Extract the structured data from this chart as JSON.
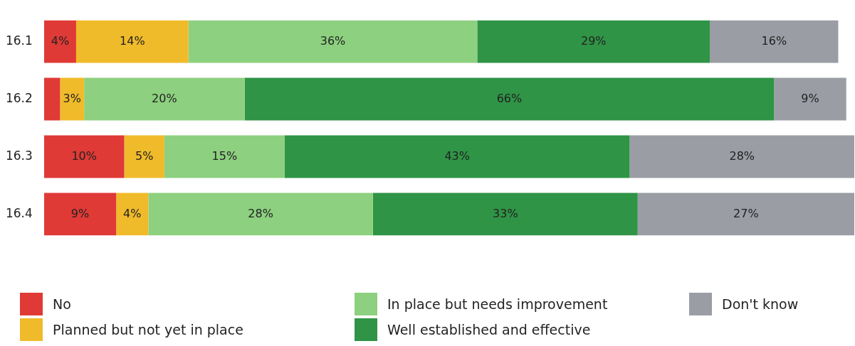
{
  "chart_data": {
    "type": "bar",
    "orientation": "horizontal",
    "stacked": true,
    "categories": [
      "16.1",
      "16.2",
      "16.3",
      "16.4"
    ],
    "xlim": [
      0,
      101
    ],
    "tick_labels": "y",
    "legend": "bottom",
    "series": [
      {
        "name": "No",
        "color": "#e03a36",
        "values": [
          4,
          2,
          10,
          9
        ],
        "value_labels": [
          "4%",
          null,
          "10%",
          "9%"
        ]
      },
      {
        "name": "Planned but not yet in place",
        "color": "#f0bb2a",
        "values": [
          14,
          3,
          5,
          4
        ],
        "value_labels": [
          "14%",
          "3%",
          "5%",
          "4%"
        ]
      },
      {
        "name": "In place but needs improvement",
        "color": "#8dd07f",
        "values": [
          36,
          20,
          15,
          28
        ],
        "value_labels": [
          "36%",
          "20%",
          "15%",
          "28%"
        ]
      },
      {
        "name": "Well established and effective",
        "color": "#2f9446",
        "values": [
          29,
          66,
          43,
          33
        ],
        "value_labels": [
          "29%",
          "66%",
          "43%",
          "33%"
        ]
      },
      {
        "name": "Don't know",
        "color": "#9a9da4",
        "values": [
          16,
          9,
          28,
          27
        ],
        "value_labels": [
          "16%",
          "9%",
          "28%",
          "27%"
        ]
      }
    ]
  }
}
